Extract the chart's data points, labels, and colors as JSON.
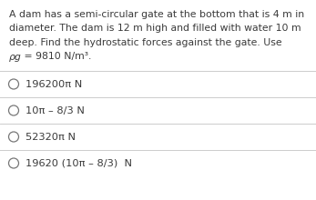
{
  "question_lines": [
    "A dam has a semi-circular gate at the bottom that is 4 m in",
    "diameter. The dam is 12 m high and filled with water 10 m",
    "deep. Find the hydrostatic forces against the gate. Use",
    "ρg = 9810 N/m³."
  ],
  "question_line_styles": [
    "normal",
    "normal",
    "normal",
    "mixed"
  ],
  "options": [
    "196200π N",
    "10π – 8/3 N",
    "52320π N",
    "19620 (10π – 8/3)  N"
  ],
  "divider_color": "#cccccc",
  "text_color": "#3a3a3a",
  "circle_color": "#777777",
  "bg_color": "#ffffff",
  "question_fontsize": 7.8,
  "option_fontsize": 8.2,
  "rho_italic": true
}
